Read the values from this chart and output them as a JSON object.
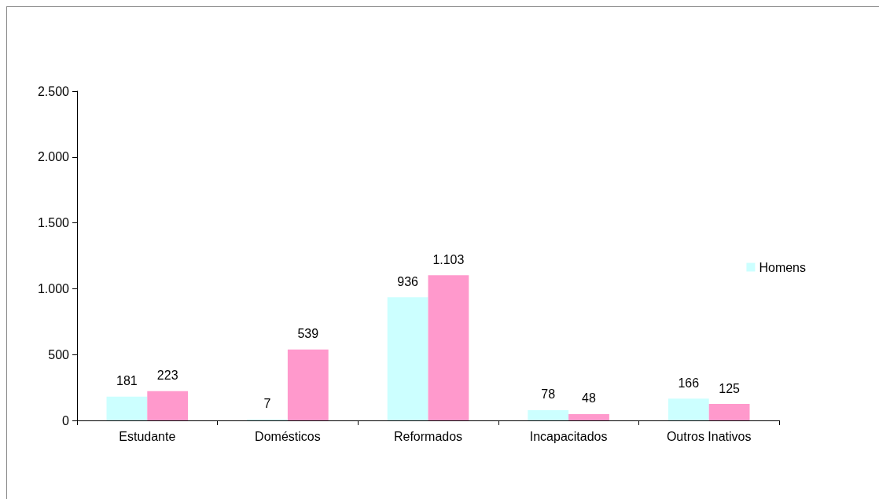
{
  "chart_data": {
    "type": "bar",
    "categories": [
      "Estudante",
      "Domésticos",
      "Reformados",
      "Incapacitados",
      "Outros Inativos"
    ],
    "series": [
      {
        "name": "Homens",
        "color": "#ccffff",
        "values": [
          181,
          7,
          936,
          78,
          166
        ],
        "value_labels": [
          "181",
          "7",
          "936",
          "78",
          "166"
        ]
      },
      {
        "color": "#ff99cc",
        "values": [
          223,
          539,
          1103,
          48,
          125
        ],
        "value_labels": [
          "223",
          "539",
          "1.103",
          "48",
          "125"
        ]
      }
    ],
    "ylim": [
      0,
      2500
    ],
    "yticks": [
      0,
      500,
      {
        "value": 1000,
        "label": "1.000"
      },
      {
        "value": 1500,
        "label": "1.500"
      },
      {
        "value": 2000,
        "label": "2.000"
      },
      {
        "value": 2500,
        "label": "2.500"
      }
    ],
    "grid": false,
    "legend": "right"
  }
}
